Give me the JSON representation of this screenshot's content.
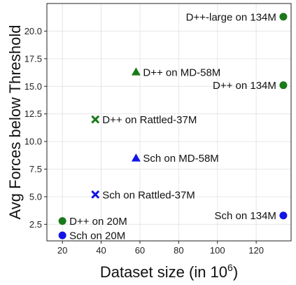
{
  "chart_data": {
    "type": "scatter",
    "xlabel": "Dataset size (in 10",
    "xlabel_superscript": "6",
    "xlabel_suffix": ")",
    "ylabel": "Avg Forces below Threshold",
    "xlim": [
      12,
      138
    ],
    "ylim": [
      1.0,
      22.5
    ],
    "xticks": [
      20,
      40,
      60,
      80,
      100,
      120
    ],
    "yticks": [
      2.5,
      5.0,
      7.5,
      10.0,
      12.5,
      15.0,
      17.5,
      20.0
    ],
    "grid": true,
    "colors": {
      "dpp": "#1a7a1a",
      "sch": "#1414e6"
    },
    "points": [
      {
        "label": "D++-large on 134M",
        "x": 134,
        "y": 21.3,
        "marker": "circle",
        "color": "#1a7a1a",
        "label_side": "left"
      },
      {
        "label": "D++ on MD-58M",
        "x": 58,
        "y": 16.3,
        "marker": "triangle",
        "color": "#1a7a1a",
        "label_side": "right"
      },
      {
        "label": "D++ on 134M",
        "x": 134,
        "y": 15.1,
        "marker": "circle",
        "color": "#1a7a1a",
        "label_side": "left"
      },
      {
        "label": "D++ on Rattled-37M",
        "x": 37,
        "y": 12.0,
        "marker": "x",
        "color": "#1a7a1a",
        "label_side": "right"
      },
      {
        "label": "Sch on MD-58M",
        "x": 58,
        "y": 8.5,
        "marker": "triangle",
        "color": "#1414e6",
        "label_side": "right"
      },
      {
        "label": "Sch on Rattled-37M",
        "x": 37,
        "y": 5.2,
        "marker": "x",
        "color": "#1414e6",
        "label_side": "right"
      },
      {
        "label": "Sch on 134M",
        "x": 134,
        "y": 3.3,
        "marker": "circle",
        "color": "#1414e6",
        "label_side": "left"
      },
      {
        "label": "D++ on 20M",
        "x": 20,
        "y": 2.8,
        "marker": "circle",
        "color": "#1a7a1a",
        "label_side": "right"
      },
      {
        "label": "Sch on 20M",
        "x": 20,
        "y": 1.5,
        "marker": "circle",
        "color": "#1414e6",
        "label_side": "right"
      }
    ]
  }
}
